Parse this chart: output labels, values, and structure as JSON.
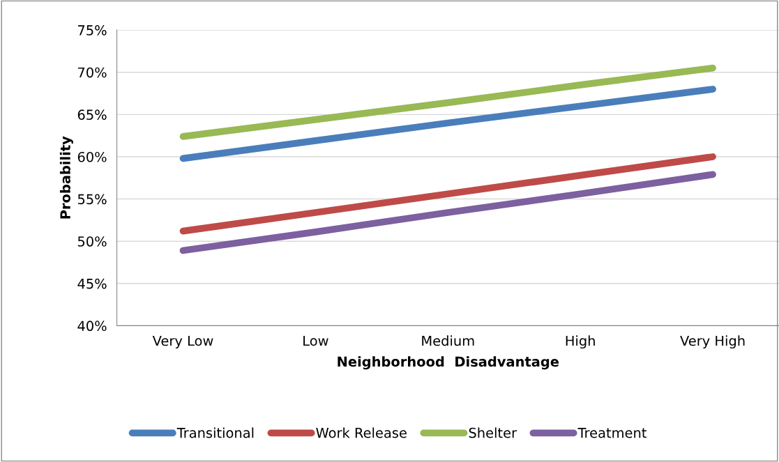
{
  "chart_data": {
    "type": "line",
    "xlabel": "Neighborhood  Disadvantage",
    "ylabel": "Probability",
    "categories": [
      "Very Low",
      "Low",
      "Medium",
      "High",
      "Very High"
    ],
    "series": [
      {
        "name": "Transitional",
        "color": "#4a7ebb",
        "values": [
          59.8,
          61.9,
          64.0,
          66.0,
          68.0
        ]
      },
      {
        "name": "Work Release",
        "color": "#be4b48",
        "values": [
          51.2,
          53.4,
          55.6,
          57.8,
          60.0
        ]
      },
      {
        "name": "Shelter",
        "color": "#98b954",
        "values": [
          62.4,
          64.4,
          66.4,
          68.5,
          70.5
        ]
      },
      {
        "name": "Treatment",
        "color": "#7d60a0",
        "values": [
          48.9,
          51.1,
          53.4,
          55.6,
          57.9
        ]
      }
    ],
    "ylim": [
      40,
      75
    ],
    "yticks": [
      {
        "value": 40,
        "label": "40%"
      },
      {
        "value": 45,
        "label": "45%"
      },
      {
        "value": 50,
        "label": "50%"
      },
      {
        "value": 55,
        "label": "55%"
      },
      {
        "value": 60,
        "label": "60%"
      },
      {
        "value": 65,
        "label": "65%"
      },
      {
        "value": 70,
        "label": "70%"
      },
      {
        "value": 75,
        "label": "75%"
      }
    ],
    "grid": "y",
    "legend": "bottom",
    "marker": "none",
    "line_style": "solid"
  }
}
